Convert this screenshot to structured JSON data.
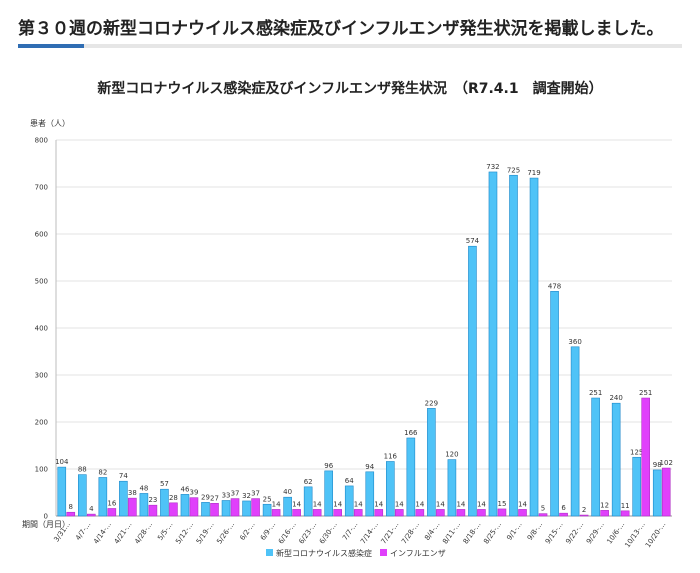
{
  "heading": "第３０週の新型コロナウイルス感染症及びインフルエンザ発生状況を掲載しました。",
  "colors": {
    "covid": "#4fc3f7",
    "flu": "#e040fb",
    "accent": "#2f6db3"
  },
  "chart_data": {
    "type": "bar",
    "title": "新型コロナウイルス感染症及びインフルエンザ発生状況　（R7.4.1　調査開始）",
    "ylabel": "患者（人）",
    "xlabel": "期間（月日）",
    "ylim": [
      0,
      800
    ],
    "yticks": [
      0,
      100,
      200,
      300,
      400,
      500,
      600,
      700,
      800
    ],
    "categories": [
      "3/31...",
      "4/7-...",
      "4/14-...",
      "4/21-...",
      "4/28-...",
      "5/5-...",
      "5/12-...",
      "5/19-...",
      "5/26-...",
      "6/2-...",
      "6/9-...",
      "6/16-...",
      "6/23-...",
      "6/30-...",
      "7/7-...",
      "7/14-...",
      "7/21-...",
      "7/28-...",
      "8/4-...",
      "8/11-...",
      "8/18-...",
      "8/25-...",
      "9/1-...",
      "9/8-...",
      "9/15-...",
      "9/22-...",
      "9/29-...",
      "10/6-...",
      "10/13-...",
      "10/20-..."
    ],
    "series": [
      {
        "name": "新型コロナウイルス感染症",
        "values": [
          104,
          88,
          82,
          74,
          48,
          57,
          46,
          29,
          33,
          32,
          25,
          40,
          62,
          96,
          64,
          94,
          116,
          166,
          229,
          120,
          574,
          732,
          725,
          719,
          478,
          360,
          251,
          240,
          125,
          98
        ]
      },
      {
        "name": "インフルエンザ",
        "values": [
          8,
          4,
          16,
          38,
          23,
          28,
          39,
          27,
          37,
          37,
          14,
          14,
          14,
          14,
          14,
          14,
          14,
          14,
          14,
          14,
          14,
          15,
          14,
          5,
          6,
          2,
          12,
          11,
          251,
          102
        ]
      }
    ],
    "legend": "bottom-center"
  }
}
